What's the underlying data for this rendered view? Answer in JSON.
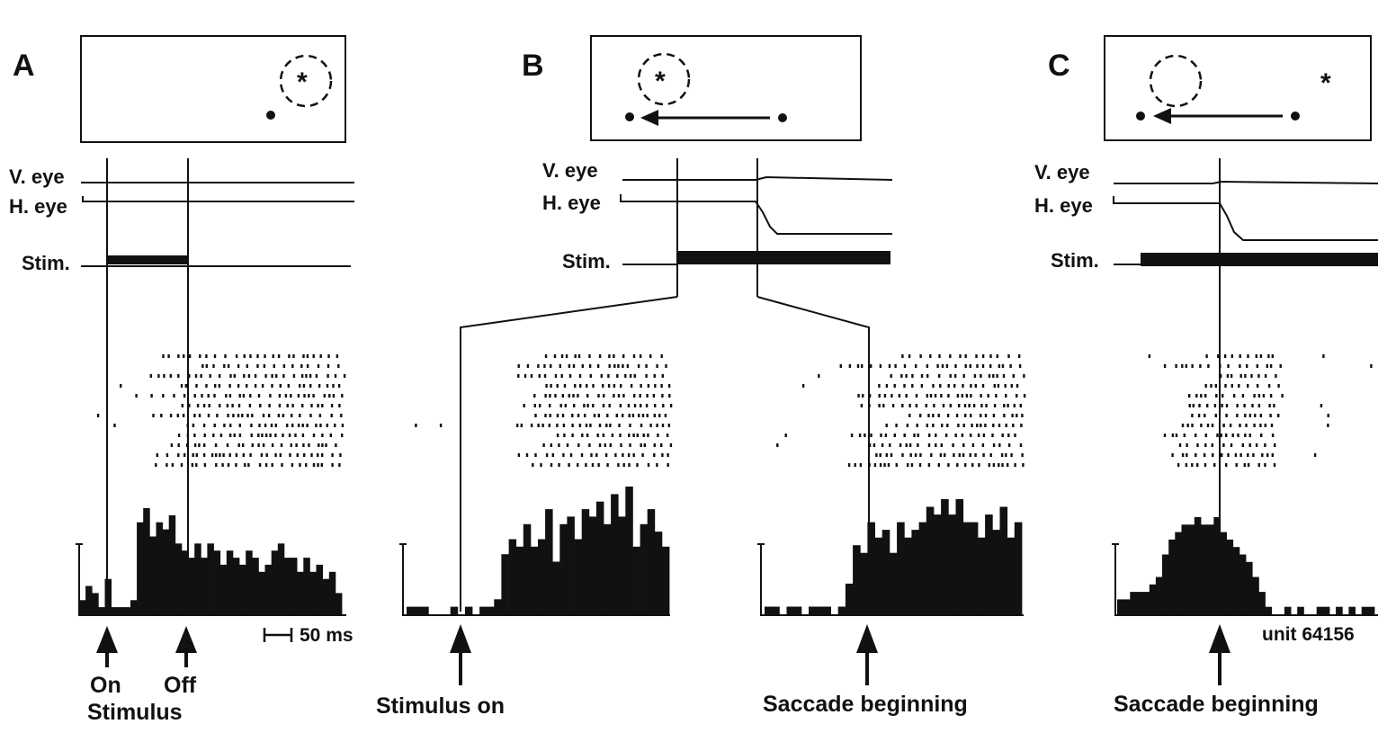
{
  "figure": {
    "panels": [
      {
        "letter": "A",
        "trace_labels": {
          "v_eye": "V. eye",
          "h_eye": "H. eye",
          "stim": "Stim."
        },
        "event_labels": [
          "On",
          "Off"
        ],
        "caption": "Stimulus",
        "scale_bar_label": "50 ms",
        "histogram": [
          2,
          4,
          3,
          1,
          5,
          1,
          1,
          1,
          2,
          13,
          15,
          11,
          13,
          12,
          14,
          10,
          9,
          8,
          10,
          8,
          10,
          9,
          7,
          9,
          8,
          7,
          9,
          8,
          6,
          7,
          9,
          10,
          8,
          8,
          6,
          8,
          6,
          7,
          5,
          6,
          3
        ],
        "raster_rows": 12
      },
      {
        "letter": "B",
        "trace_labels": {
          "v_eye": "V. eye",
          "h_eye": "H. eye",
          "stim": "Stim."
        },
        "left_caption": "Stimulus on",
        "right_caption": "Saccade beginning",
        "histogram_left": [
          1,
          1,
          1,
          0,
          0,
          0,
          1,
          0,
          1,
          0,
          1,
          1,
          2,
          8,
          10,
          9,
          12,
          9,
          10,
          14,
          7,
          12,
          13,
          10,
          14,
          13,
          15,
          12,
          16,
          13,
          17,
          9,
          12,
          14,
          11,
          9
        ],
        "histogram_right": [
          1,
          1,
          0,
          1,
          1,
          0,
          1,
          1,
          1,
          0,
          1,
          4,
          9,
          8,
          12,
          10,
          11,
          8,
          12,
          10,
          11,
          12,
          14,
          13,
          15,
          13,
          15,
          12,
          12,
          10,
          13,
          11,
          14,
          10,
          12
        ],
        "raster_rows": 12
      },
      {
        "letter": "C",
        "trace_labels": {
          "v_eye": "V. eye",
          "h_eye": "H. eye",
          "stim": "Stim."
        },
        "caption": "Saccade beginning",
        "unit_label": "unit 64156",
        "histogram": [
          2,
          2,
          3,
          3,
          3,
          4,
          5,
          8,
          10,
          11,
          12,
          12,
          13,
          12,
          12,
          13,
          11,
          10,
          9,
          8,
          7,
          5,
          3,
          1,
          0,
          0,
          1,
          0,
          1,
          0,
          0,
          1,
          1,
          0,
          1,
          0,
          1,
          0,
          1,
          1
        ],
        "raster_rows": 12
      }
    ]
  }
}
